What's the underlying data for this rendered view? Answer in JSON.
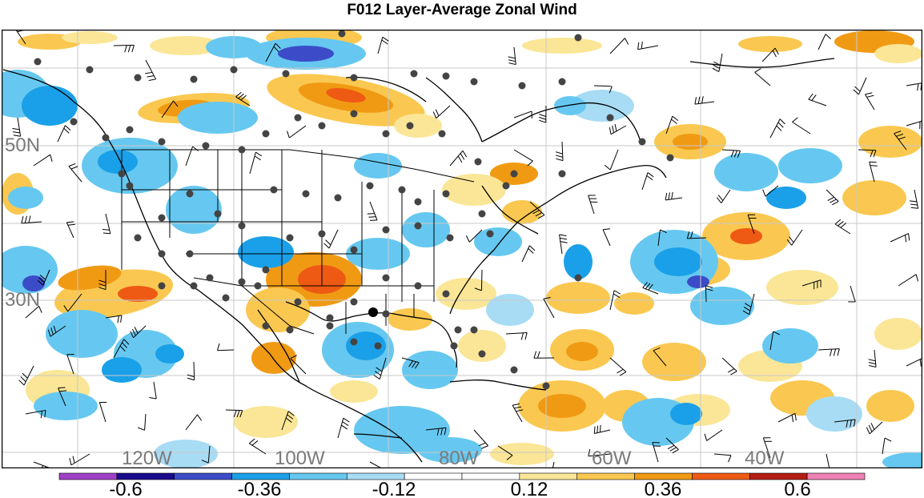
{
  "title": "F012 Layer-Average Zonal Wind",
  "map": {
    "lat_labels": [
      "50N",
      "30N"
    ],
    "lon_labels": [
      "120W",
      "100W",
      "80W",
      "60W",
      "40W"
    ]
  },
  "colorbar": {
    "colors": [
      "#a040c8",
      "#1a0a8c",
      "#3c4cc8",
      "#1aa0e8",
      "#66c8f0",
      "#a8dcf4",
      "#ffffff",
      "#ffffff",
      "#fae696",
      "#fac850",
      "#f09a14",
      "#ee5a14",
      "#b41e14",
      "#ee82b4"
    ],
    "labels": [
      "-0.6",
      "-0.36",
      "-0.12",
      "0.12",
      "0.36",
      "0.6"
    ]
  }
}
